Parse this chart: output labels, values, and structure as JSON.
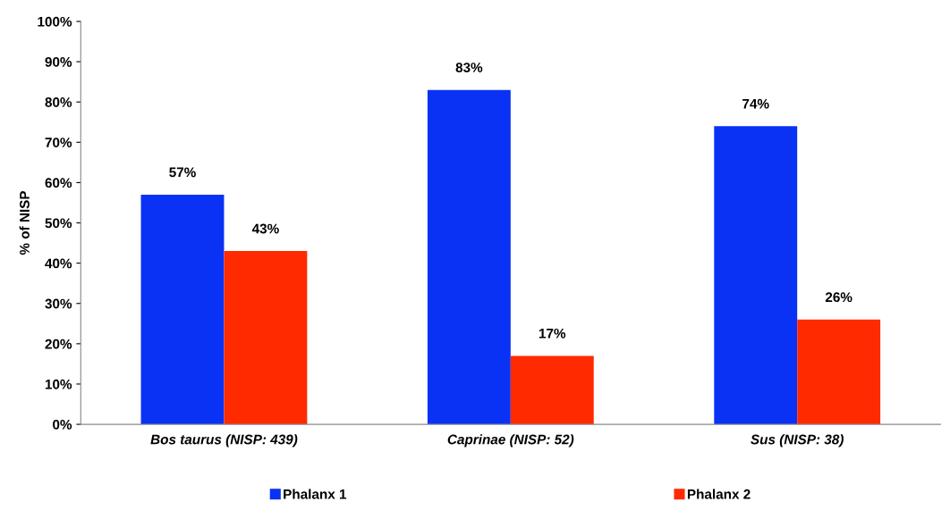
{
  "chart_data": {
    "type": "bar",
    "ylabel": "% of NISP",
    "categories": [
      "Bos taurus (NISP: 439)",
      "Caprinae (NISP: 52)",
      "Sus (NISP: 38)"
    ],
    "series": [
      {
        "name": "Phalanx 1",
        "color": "#0a32f5",
        "values": [
          57,
          83,
          74
        ],
        "value_labels": [
          "57%",
          "83%",
          "74%"
        ]
      },
      {
        "name": "Phalanx 2",
        "color": "#ff2a00",
        "values": [
          43,
          17,
          26
        ],
        "value_labels": [
          "43%",
          "17%",
          "26%"
        ]
      }
    ],
    "ylim": [
      0,
      100
    ],
    "yticks": [
      {
        "value": 0,
        "label": "0%"
      },
      {
        "value": 10,
        "label": "10%"
      },
      {
        "value": 20,
        "label": "20%"
      },
      {
        "value": 30,
        "label": "30%"
      },
      {
        "value": 40,
        "label": "40%"
      },
      {
        "value": 50,
        "label": "50%"
      },
      {
        "value": 60,
        "label": "60%"
      },
      {
        "value": 70,
        "label": "70%"
      },
      {
        "value": 80,
        "label": "80%"
      },
      {
        "value": 90,
        "label": "90%"
      },
      {
        "value": 100,
        "label": "100%"
      }
    ],
    "grid": false,
    "legend": "bottom"
  }
}
